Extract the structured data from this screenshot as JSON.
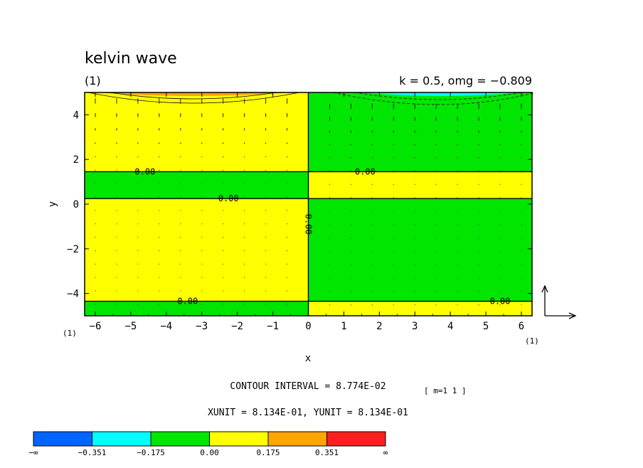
{
  "chart_data": {
    "type": "heatmap",
    "title": "kelvin wave",
    "panel_label": "(1)",
    "subtitle_right": "k = 0.5, omg = −0.809",
    "xlabel": "x",
    "ylabel": "y",
    "xlim": [
      -6.3,
      6.3
    ],
    "ylim": [
      -5,
      5
    ],
    "x_ticks": [
      -6,
      -5,
      -4,
      -3,
      -2,
      -1,
      0,
      1,
      2,
      3,
      4,
      5,
      6
    ],
    "y_ticks": [
      -4,
      -2,
      0,
      2,
      4
    ],
    "x_tick_labels": [
      "−6",
      "−5",
      "−4",
      "−3",
      "−2",
      "−1",
      "0",
      "1",
      "2",
      "3",
      "4",
      "5",
      "6"
    ],
    "y_tick_labels": [
      "−4",
      "−2",
      "0",
      "2",
      "4"
    ],
    "corner_labels": {
      "bottom_left": "(1)",
      "bottom_right": "(1)"
    },
    "fill_regions": [
      {
        "x": [
          -6.3,
          0
        ],
        "y": [
          -5,
          -4.35
        ],
        "level": "green"
      },
      {
        "x": [
          -6.3,
          0
        ],
        "y": [
          -4.35,
          0.25
        ],
        "level": "yellow"
      },
      {
        "x": [
          -6.3,
          0
        ],
        "y": [
          0.25,
          1.45
        ],
        "level": "green"
      },
      {
        "x": [
          -6.3,
          0
        ],
        "y": [
          1.45,
          5
        ],
        "level": "yellow"
      },
      {
        "x": [
          0,
          6.3
        ],
        "y": [
          -5,
          -4.35
        ],
        "level": "yellow"
      },
      {
        "x": [
          0,
          6.3
        ],
        "y": [
          -4.35,
          0.25
        ],
        "level": "green"
      },
      {
        "x": [
          0,
          6.3
        ],
        "y": [
          0.25,
          1.45
        ],
        "level": "yellow"
      },
      {
        "x": [
          0,
          6.3
        ],
        "y": [
          1.45,
          5
        ],
        "level": "green"
      }
    ],
    "contour_labels": [
      {
        "text": "0.00",
        "x": -4.6,
        "y": 1.45
      },
      {
        "text": "0.00",
        "x": -2.25,
        "y": 0.25
      },
      {
        "text": "0.00",
        "x": 1.6,
        "y": 1.45
      },
      {
        "text": "0.00",
        "x": -3.4,
        "y": -4.35
      },
      {
        "text": "0.00",
        "x": 5.4,
        "y": -4.35
      },
      {
        "text": "0.00",
        "x": 0,
        "y": -0.9,
        "rotated": true
      }
    ],
    "contour_interval": "CONTOUR INTERVAL = 8.774E-02",
    "multiplier": "[ m=1 1 ]",
    "units": "XUNIT = 8.134E-01, YUNIT = 8.134E-01",
    "colorbar": {
      "colors": [
        "#0064ff",
        "#00ffff",
        "#00e600",
        "#ffff00",
        "#ffa500",
        "#ff1e1e"
      ],
      "labels": [
        "−∞",
        "−0.351",
        "−0.175",
        "0.00",
        "0.175",
        "0.351",
        "∞"
      ]
    },
    "colors": {
      "yellow": "#ffff00",
      "green": "#00e600",
      "orange": "#ffa500",
      "cyan": "#00ffff"
    }
  }
}
